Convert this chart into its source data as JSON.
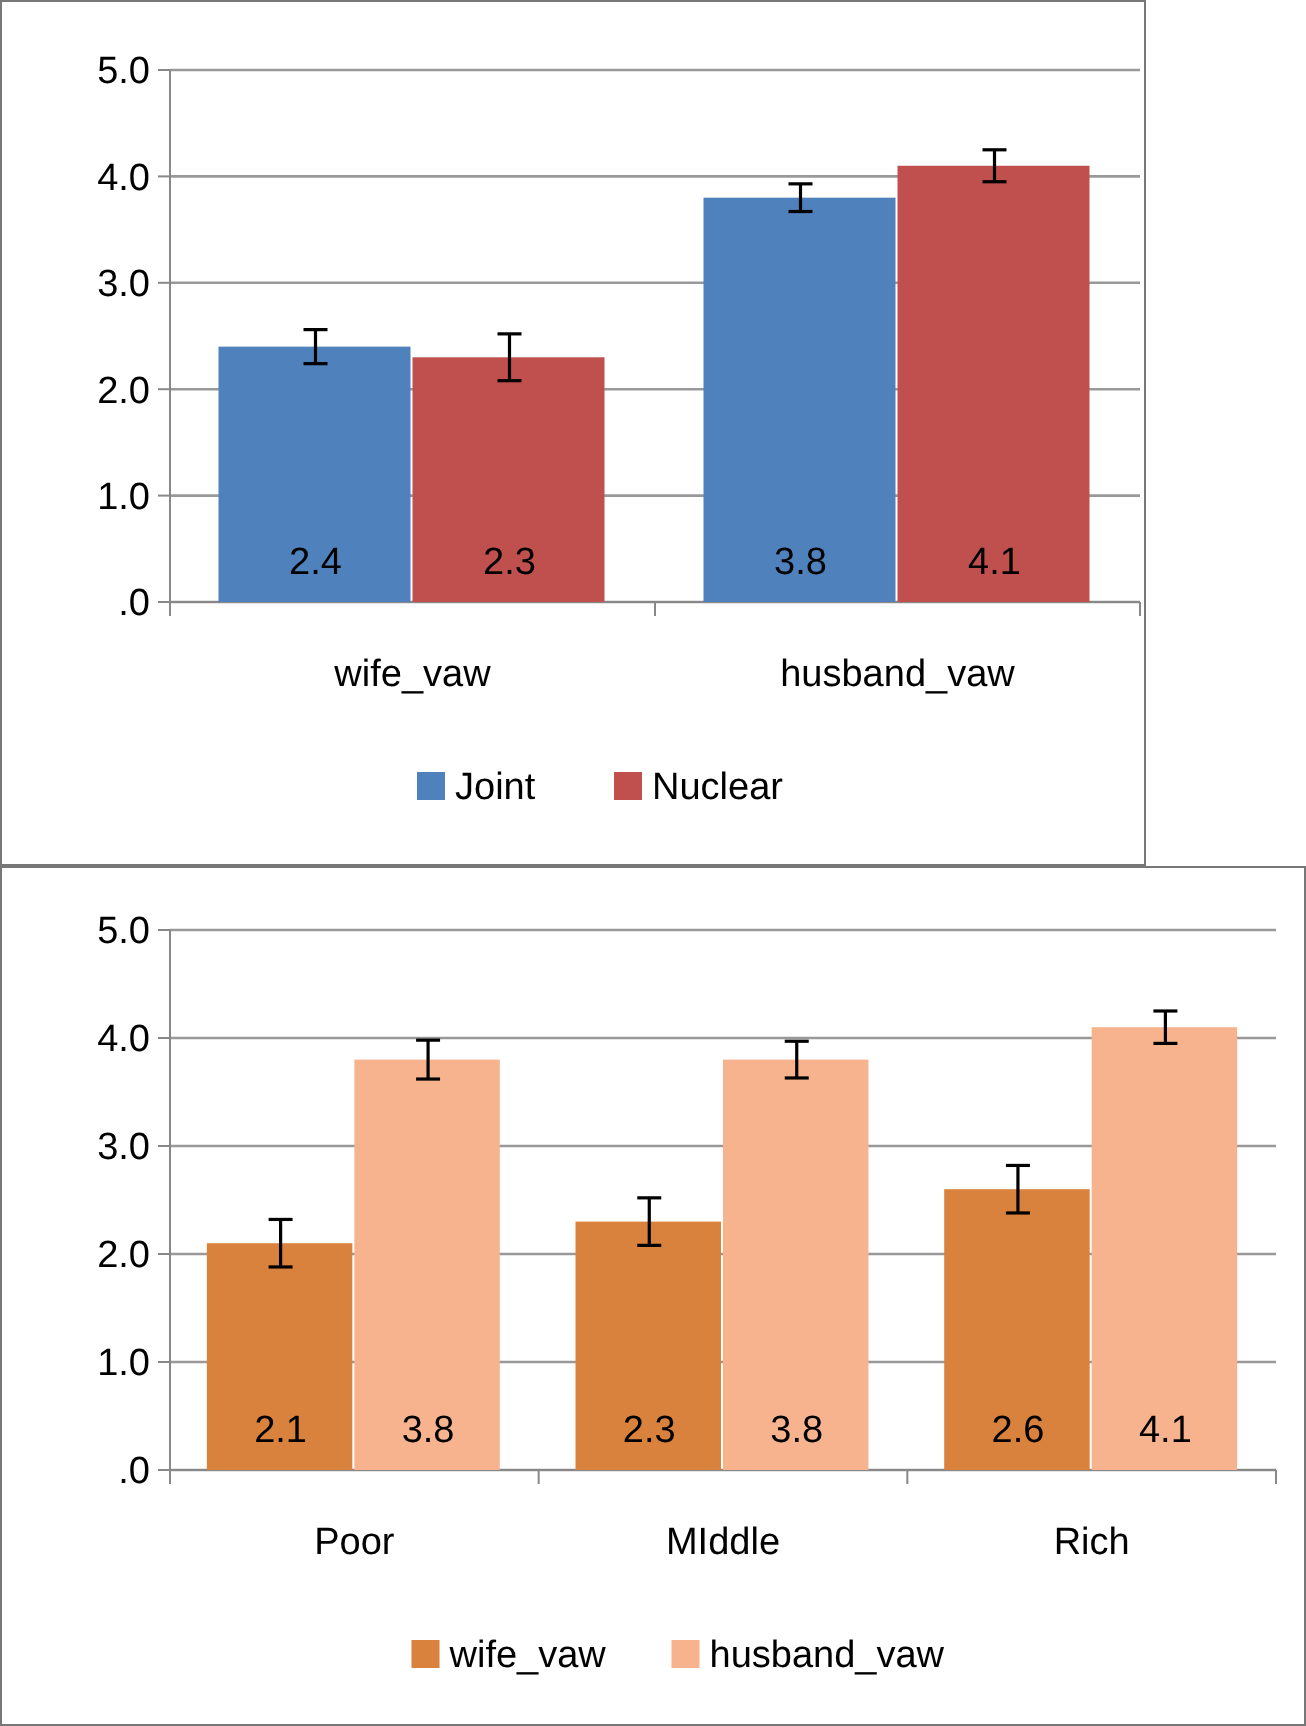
{
  "chart_data": [
    {
      "type": "bar",
      "categories": [
        "wife_vaw",
        "husband_vaw"
      ],
      "series": [
        {
          "name": "Joint",
          "color": "#4f81bd",
          "values": [
            2.4,
            3.8
          ],
          "errors": [
            0.16,
            0.13
          ]
        },
        {
          "name": "Nuclear",
          "color": "#c0504d",
          "values": [
            2.3,
            4.1
          ],
          "errors": [
            0.22,
            0.15
          ]
        }
      ],
      "ylim": [
        0,
        5
      ],
      "yticks": [
        {
          "value": 0,
          "label": ".0"
        },
        {
          "value": 1,
          "label": "1.0"
        },
        {
          "value": 2,
          "label": "2.0"
        },
        {
          "value": 3,
          "label": "3.0"
        },
        {
          "value": 4,
          "label": "4.0"
        },
        {
          "value": 5,
          "label": "5.0"
        }
      ],
      "grid": "y",
      "legend": "bottom",
      "data_labels": true
    },
    {
      "type": "bar",
      "categories": [
        "Poor",
        "MIddle",
        "Rich"
      ],
      "series": [
        {
          "name": "wife_vaw",
          "color": "#d9823e",
          "values": [
            2.1,
            2.3,
            2.6
          ],
          "errors": [
            0.22,
            0.22,
            0.22
          ]
        },
        {
          "name": "husband_vaw",
          "color": "#f7b38e",
          "values": [
            3.8,
            3.8,
            4.1
          ],
          "errors": [
            0.18,
            0.17,
            0.15
          ]
        }
      ],
      "ylim": [
        0,
        5
      ],
      "yticks": [
        {
          "value": 0,
          "label": ".0"
        },
        {
          "value": 1,
          "label": "1.0"
        },
        {
          "value": 2,
          "label": "2.0"
        },
        {
          "value": 3,
          "label": "3.0"
        },
        {
          "value": 4,
          "label": "4.0"
        },
        {
          "value": 5,
          "label": "5.0"
        }
      ],
      "grid": "y",
      "legend": "bottom",
      "data_labels": true
    }
  ]
}
